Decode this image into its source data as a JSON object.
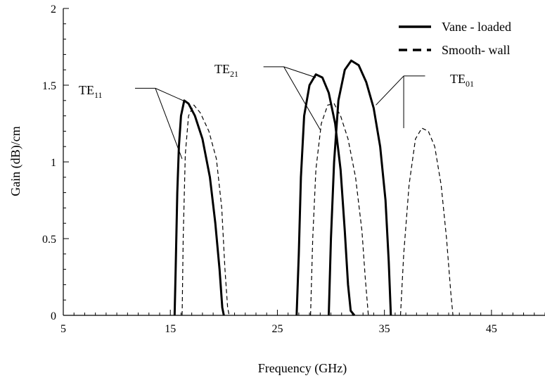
{
  "chart_data": {
    "type": "line",
    "title": "",
    "xlabel": "Frequency (GHz)",
    "ylabel": "Gain (dB)/cm",
    "xlim": [
      5,
      50
    ],
    "ylim": [
      0,
      2
    ],
    "x_ticks": [
      5,
      15,
      25,
      35,
      45
    ],
    "x_tick_labels": [
      "5",
      "15",
      "25",
      "35",
      "45"
    ],
    "y_ticks": [
      0,
      0.5,
      1,
      1.5,
      2
    ],
    "y_tick_labels": [
      "0",
      "0.5",
      "1",
      "1.5",
      "2"
    ],
    "grid": false,
    "legend": {
      "position": "top-right",
      "entries": [
        {
          "label": "Vane - loaded",
          "style": "solid"
        },
        {
          "label": "Smooth- wall",
          "style": "dashed"
        }
      ]
    },
    "series": [
      {
        "mode": "TE11",
        "style": "solid",
        "points": [
          [
            15.4,
            0
          ],
          [
            15.5,
            0.3
          ],
          [
            15.65,
            0.8
          ],
          [
            15.8,
            1.1
          ],
          [
            16.0,
            1.3
          ],
          [
            16.3,
            1.4
          ],
          [
            16.7,
            1.38
          ],
          [
            17.3,
            1.3
          ],
          [
            18.0,
            1.15
          ],
          [
            18.7,
            0.9
          ],
          [
            19.2,
            0.6
          ],
          [
            19.6,
            0.3
          ],
          [
            19.85,
            0.05
          ],
          [
            20.0,
            0
          ]
        ]
      },
      {
        "mode": "TE11",
        "style": "dashed",
        "points": [
          [
            16.1,
            0
          ],
          [
            16.2,
            0.5
          ],
          [
            16.4,
            1.05
          ],
          [
            16.7,
            1.3
          ],
          [
            17.2,
            1.37
          ],
          [
            17.8,
            1.32
          ],
          [
            18.6,
            1.2
          ],
          [
            19.3,
            1.02
          ],
          [
            19.8,
            0.7
          ],
          [
            20.1,
            0.3
          ],
          [
            20.35,
            0.05
          ],
          [
            20.5,
            0
          ]
        ]
      },
      {
        "mode": "TE21",
        "style": "solid",
        "points": [
          [
            26.8,
            0
          ],
          [
            27.0,
            0.4
          ],
          [
            27.2,
            0.9
          ],
          [
            27.5,
            1.3
          ],
          [
            28.0,
            1.5
          ],
          [
            28.6,
            1.57
          ],
          [
            29.2,
            1.55
          ],
          [
            29.8,
            1.45
          ],
          [
            30.4,
            1.25
          ],
          [
            30.9,
            0.95
          ],
          [
            31.3,
            0.55
          ],
          [
            31.6,
            0.2
          ],
          [
            31.85,
            0.03
          ],
          [
            32.2,
            0
          ]
        ]
      },
      {
        "mode": "TE21",
        "style": "dashed",
        "points": [
          [
            28.1,
            0
          ],
          [
            28.3,
            0.5
          ],
          [
            28.6,
            0.95
          ],
          [
            29.1,
            1.25
          ],
          [
            29.7,
            1.37
          ],
          [
            30.3,
            1.38
          ],
          [
            30.9,
            1.3
          ],
          [
            31.6,
            1.15
          ],
          [
            32.3,
            0.9
          ],
          [
            32.9,
            0.55
          ],
          [
            33.2,
            0.25
          ],
          [
            33.5,
            0
          ]
        ]
      },
      {
        "mode": "TE01",
        "style": "solid",
        "points": [
          [
            29.8,
            0
          ],
          [
            30.0,
            0.5
          ],
          [
            30.3,
            1.0
          ],
          [
            30.7,
            1.4
          ],
          [
            31.3,
            1.6
          ],
          [
            31.9,
            1.66
          ],
          [
            32.6,
            1.63
          ],
          [
            33.3,
            1.52
          ],
          [
            34.0,
            1.35
          ],
          [
            34.6,
            1.1
          ],
          [
            35.1,
            0.75
          ],
          [
            35.4,
            0.35
          ],
          [
            35.6,
            0
          ]
        ]
      },
      {
        "mode": "TE01",
        "style": "dashed",
        "points": [
          [
            36.5,
            0
          ],
          [
            36.8,
            0.4
          ],
          [
            37.3,
            0.85
          ],
          [
            37.9,
            1.15
          ],
          [
            38.5,
            1.22
          ],
          [
            39.1,
            1.2
          ],
          [
            39.7,
            1.1
          ],
          [
            40.3,
            0.85
          ],
          [
            40.8,
            0.5
          ],
          [
            41.2,
            0.15
          ],
          [
            41.4,
            0
          ]
        ]
      }
    ],
    "annotations": [
      {
        "base": "TE",
        "sub": "11"
      },
      {
        "base": "TE",
        "sub": "21"
      },
      {
        "base": "TE",
        "sub": "01"
      }
    ]
  }
}
